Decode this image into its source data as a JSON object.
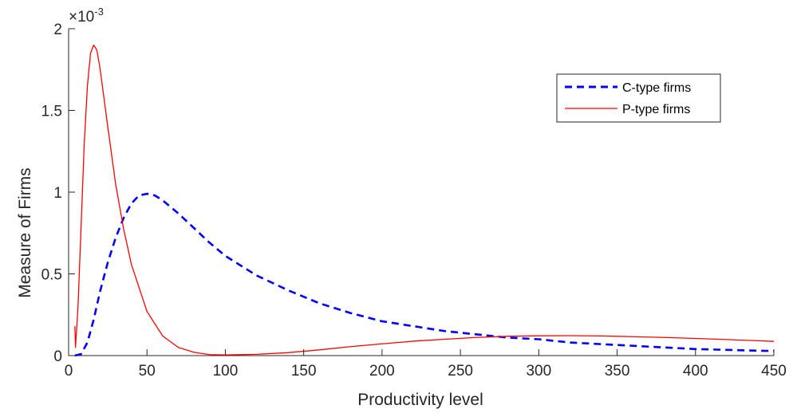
{
  "chart_data": {
    "type": "line",
    "title": "",
    "xlabel": "Productivity level",
    "ylabel": "Measure of Firms",
    "exponent_label": "×10",
    "exponent_power": "-3",
    "xlim": [
      0,
      450
    ],
    "ylim": [
      0,
      2
    ],
    "x_ticks": [
      0,
      50,
      100,
      150,
      200,
      250,
      300,
      350,
      400,
      450
    ],
    "x_tick_labels": [
      "0",
      "50",
      "100",
      "150",
      "200",
      "250",
      "300",
      "350",
      "400",
      "450"
    ],
    "y_ticks": [
      0,
      0.5,
      1,
      1.5,
      2
    ],
    "y_tick_labels": [
      "0",
      "0.5",
      "1",
      "1.5",
      "2"
    ],
    "grid": false,
    "legend_position": "top-right",
    "series": [
      {
        "name": "C-type firms",
        "color": "#0000ff",
        "style": "dashed",
        "points": [
          [
            4,
            0.0
          ],
          [
            8,
            0.01
          ],
          [
            12,
            0.08
          ],
          [
            16,
            0.22
          ],
          [
            20,
            0.39
          ],
          [
            25,
            0.57
          ],
          [
            30,
            0.72
          ],
          [
            35,
            0.84
          ],
          [
            40,
            0.93
          ],
          [
            45,
            0.98
          ],
          [
            50,
            0.99
          ],
          [
            55,
            0.98
          ],
          [
            60,
            0.95
          ],
          [
            70,
            0.87
          ],
          [
            80,
            0.78
          ],
          [
            90,
            0.69
          ],
          [
            100,
            0.61
          ],
          [
            120,
            0.49
          ],
          [
            140,
            0.4
          ],
          [
            160,
            0.32
          ],
          [
            180,
            0.26
          ],
          [
            200,
            0.21
          ],
          [
            220,
            0.18
          ],
          [
            240,
            0.15
          ],
          [
            260,
            0.13
          ],
          [
            280,
            0.11
          ],
          [
            300,
            0.1
          ],
          [
            320,
            0.08
          ],
          [
            340,
            0.07
          ],
          [
            360,
            0.06
          ],
          [
            380,
            0.05
          ],
          [
            400,
            0.04
          ],
          [
            420,
            0.035
          ],
          [
            440,
            0.03
          ],
          [
            450,
            0.028
          ]
        ]
      },
      {
        "name": "P-type firms",
        "color": "#ff0000",
        "style": "solid",
        "points": [
          [
            4,
            0.18
          ],
          [
            4.4,
            0.05
          ],
          [
            6,
            0.3
          ],
          [
            8,
            0.8
          ],
          [
            10,
            1.3
          ],
          [
            12,
            1.65
          ],
          [
            14,
            1.85
          ],
          [
            16,
            1.9
          ],
          [
            18,
            1.87
          ],
          [
            20,
            1.76
          ],
          [
            25,
            1.4
          ],
          [
            30,
            1.05
          ],
          [
            35,
            0.78
          ],
          [
            40,
            0.56
          ],
          [
            50,
            0.27
          ],
          [
            60,
            0.12
          ],
          [
            70,
            0.05
          ],
          [
            80,
            0.02
          ],
          [
            90,
            0.006
          ],
          [
            100,
            0.004
          ],
          [
            120,
            0.008
          ],
          [
            140,
            0.018
          ],
          [
            160,
            0.035
          ],
          [
            180,
            0.055
          ],
          [
            200,
            0.072
          ],
          [
            220,
            0.088
          ],
          [
            240,
            0.1
          ],
          [
            260,
            0.111
          ],
          [
            280,
            0.118
          ],
          [
            300,
            0.121
          ],
          [
            320,
            0.122
          ],
          [
            340,
            0.12
          ],
          [
            360,
            0.116
          ],
          [
            380,
            0.111
          ],
          [
            400,
            0.105
          ],
          [
            420,
            0.098
          ],
          [
            440,
            0.091
          ],
          [
            450,
            0.087
          ]
        ]
      }
    ]
  }
}
